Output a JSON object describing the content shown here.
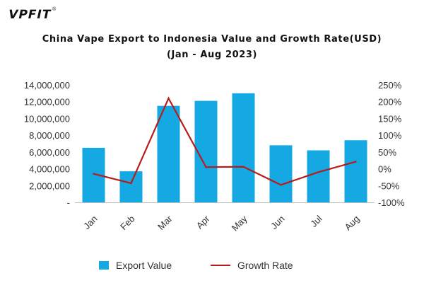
{
  "logo": {
    "text": "VPFIT",
    "mark": "®"
  },
  "colors": {
    "bar": "#14a9e2",
    "line": "#b71c1c",
    "axis": "#555555",
    "text": "#333333"
  },
  "chart_data": {
    "type": "bar",
    "title": "China Vape Export to Indonesia Value and Growth Rate(USD)",
    "subtitle": "(Jan - Aug 2023)",
    "categories": [
      "Jan",
      "Feb",
      "Mar",
      "Apr",
      "May",
      "Jun",
      "Jul",
      "Aug"
    ],
    "series": [
      {
        "name": "Export Value",
        "type": "bar",
        "axis": "left",
        "values": [
          6500000,
          3700000,
          11500000,
          12100000,
          13000000,
          6800000,
          6200000,
          7400000
        ]
      },
      {
        "name": "Growth Rate",
        "type": "line",
        "axis": "right",
        "values": [
          -15,
          -43,
          210,
          5,
          6,
          -48,
          -10,
          21
        ]
      }
    ],
    "y_left": {
      "ylim": [
        0,
        14000000
      ],
      "ticks": [
        "-",
        "2,000,000",
        "4,000,000",
        "6,000,000",
        "8,000,000",
        "10,000,000",
        "12,000,000",
        "14,000,000"
      ]
    },
    "y_right": {
      "ylim": [
        -100,
        250
      ],
      "ticks": [
        "-100%",
        "-50%",
        "0%",
        "50%",
        "100%",
        "150%",
        "200%",
        "250%"
      ]
    },
    "grid": false,
    "legend": "bottom"
  }
}
